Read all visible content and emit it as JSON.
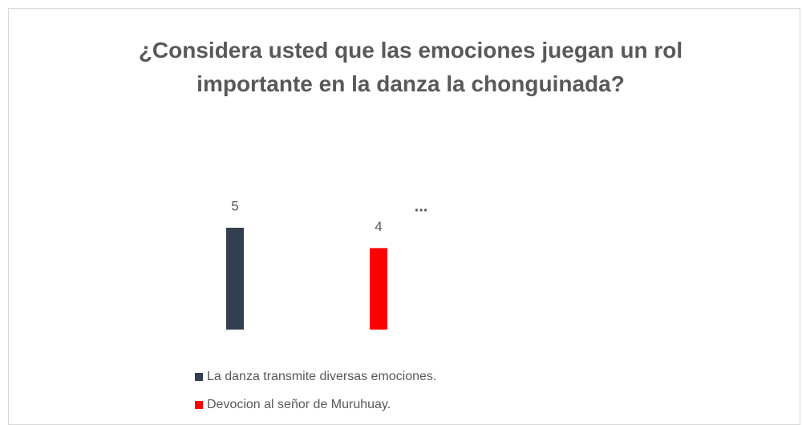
{
  "chart_data": {
    "type": "bar",
    "title": "¿Considera usted que las emociones juegan un rol importante en la danza la chonguinada?",
    "annotation": "...",
    "categories": [
      null
    ],
    "series": [
      {
        "name": "La danza transmite diversas emociones.",
        "color": "#333f50",
        "values": [
          5
        ]
      },
      {
        "name": "Devocion al señor de Muruhuay.",
        "color": "#ff0000",
        "values": [
          4
        ]
      }
    ]
  }
}
